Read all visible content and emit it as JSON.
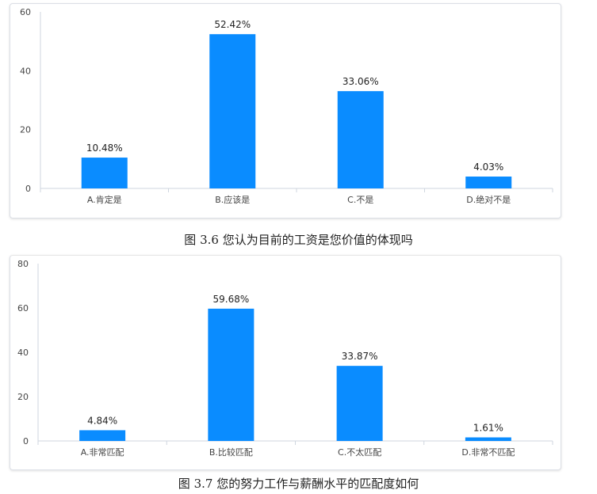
{
  "chart_data": [
    {
      "type": "bar",
      "categories": [
        "A.肯定是",
        "B.应该是",
        "C.不是",
        "D.绝对不是"
      ],
      "values": [
        10.48,
        52.42,
        33.06,
        4.03
      ],
      "data_labels": [
        "10.48%",
        "52.42%",
        "33.06%",
        "4.03%"
      ],
      "yticks": [
        "0",
        "20",
        "40",
        "60"
      ],
      "ylim": [
        0,
        60
      ],
      "color": "#0a8cff",
      "caption": "图 3.6 您认为目前的工资是您价值的体现吗"
    },
    {
      "type": "bar",
      "categories": [
        "A.非常匹配",
        "B.比较匹配",
        "C.不太匹配",
        "D.非常不匹配"
      ],
      "values": [
        4.84,
        59.68,
        33.87,
        1.61
      ],
      "data_labels": [
        "4.84%",
        "59.68%",
        "33.87%",
        "1.61%"
      ],
      "yticks": [
        "0",
        "20",
        "40",
        "60",
        "80"
      ],
      "ylim": [
        0,
        80
      ],
      "color": "#0a8cff",
      "caption": "图 3.7 您的努力工作与薪酬水平的匹配度如何"
    }
  ]
}
